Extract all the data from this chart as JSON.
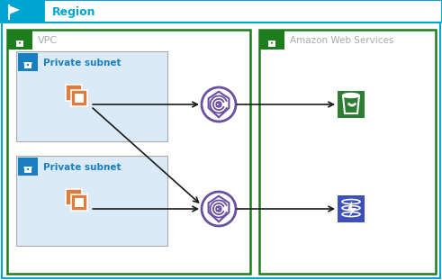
{
  "fig_width": 4.91,
  "fig_height": 3.11,
  "dpi": 100,
  "bg_color": "#ffffff",
  "region_bar_color": "#00a4d3",
  "region_text": "Region",
  "vpc_border_color": "#1d7d1d",
  "vpc_text": "VPC",
  "vpc_text_color": "#aaaaaa",
  "aws_border_color": "#1d7d1d",
  "aws_text": "Amazon Web Services",
  "aws_text_color": "#aaaaaa",
  "subnet_bg_color": "#daeaf7",
  "subnet_border_color": "#aaaaaa",
  "subnet_text": "Private subnet",
  "subnet_text_color": "#1a7fc1",
  "subnet_icon_color": "#1a7fc1",
  "ec2_color": "#e07b39",
  "endpoint_color": "#6b4fa0",
  "s3_color": "#2d7d32",
  "dynamo_color": "#3d4fba",
  "arrow_color": "#1a1a1a",
  "region_bg": "#f0f8ff",
  "outer_bg": "#ffffff"
}
